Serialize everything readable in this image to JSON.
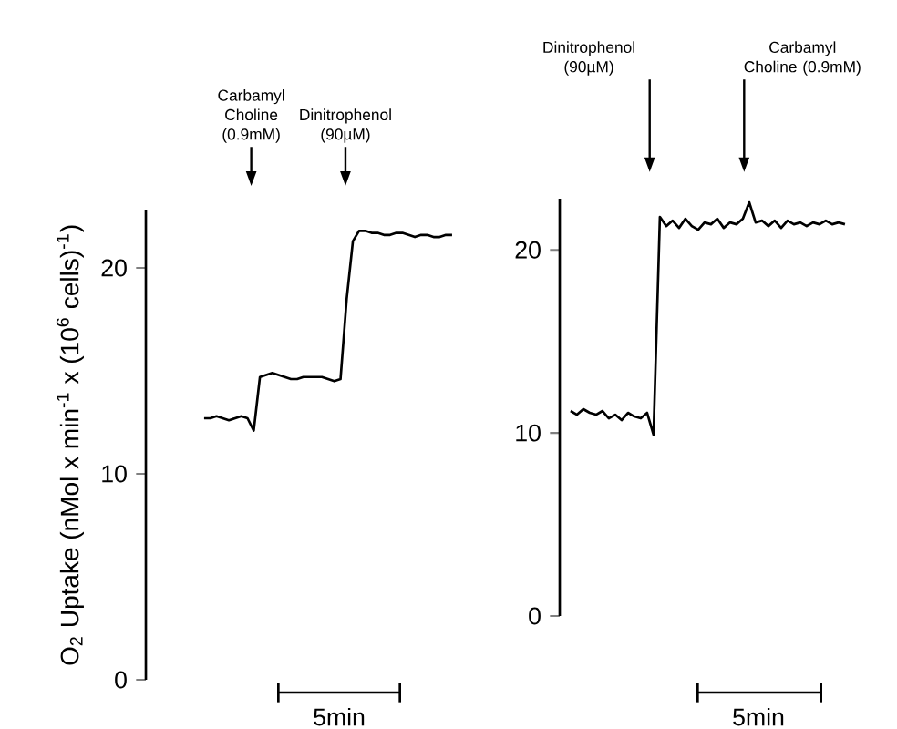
{
  "chart_data": [
    {
      "type": "line",
      "ylabel": "O$_{2}$ Uptake (nMol x min$^{-1}$ x (10$^{6}$ cells)$^{-1}$)",
      "color": "#000000",
      "categories": [
        null,
        null,
        null,
        null,
        null,
        null,
        null,
        null,
        null,
        null,
        null,
        null,
        null,
        null,
        null,
        null,
        null,
        null,
        null,
        null,
        null,
        null,
        null,
        null,
        null,
        null,
        null,
        null,
        null,
        null,
        null,
        null,
        null,
        null,
        null,
        null,
        null,
        null,
        null,
        null,
        null
      ],
      "values": [
        12.7,
        12.7,
        12.8,
        12.7,
        12.6,
        12.7,
        12.8,
        12.7,
        12.1,
        14.7,
        14.8,
        14.9,
        14.8,
        14.7,
        14.6,
        14.6,
        14.7,
        14.7,
        14.7,
        14.7,
        14.6,
        14.5,
        14.6,
        18.5,
        21.3,
        21.8,
        21.8,
        21.7,
        21.7,
        21.6,
        21.6,
        21.7,
        21.7,
        21.6,
        21.5,
        21.6,
        21.6,
        21.5,
        21.5,
        21.6,
        21.6
      ],
      "ylim": [
        0,
        22.8
      ],
      "yticks": [
        0,
        10,
        20
      ],
      "tick_labels": "y",
      "annotations": [
        "Carbamyl Choline (0.9mM)",
        "Dinitrophenol (90µM)",
        "5min"
      ]
    },
    {
      "type": "line",
      "color": "#000000",
      "categories": [
        null,
        null,
        null,
        null,
        null,
        null,
        null,
        null,
        null,
        null,
        null,
        null,
        null,
        null,
        null,
        null,
        null,
        null,
        null,
        null,
        null,
        null,
        null,
        null,
        null,
        null,
        null,
        null,
        null,
        null,
        null,
        null,
        null,
        null,
        null,
        null,
        null,
        null,
        null,
        null,
        null,
        null,
        null,
        null
      ],
      "values": [
        11.2,
        11.0,
        11.3,
        11.1,
        11.0,
        11.2,
        10.8,
        11.0,
        10.7,
        11.1,
        10.9,
        10.8,
        11.1,
        9.9,
        21.8,
        21.3,
        21.6,
        21.2,
        21.7,
        21.3,
        21.1,
        21.5,
        21.4,
        21.7,
        21.2,
        21.5,
        21.4,
        21.7,
        22.6,
        21.5,
        21.6,
        21.3,
        21.6,
        21.2,
        21.6,
        21.4,
        21.5,
        21.3,
        21.5,
        21.4,
        21.6,
        21.4,
        21.5,
        21.4
      ],
      "ylim": [
        0,
        22.8
      ],
      "yticks": [
        0,
        10,
        20
      ],
      "tick_labels": "y",
      "annotations": [
        "Dinitrophenol (90µM)",
        "Carbamyl Choline (0.9mM)",
        "5min"
      ]
    }
  ]
}
